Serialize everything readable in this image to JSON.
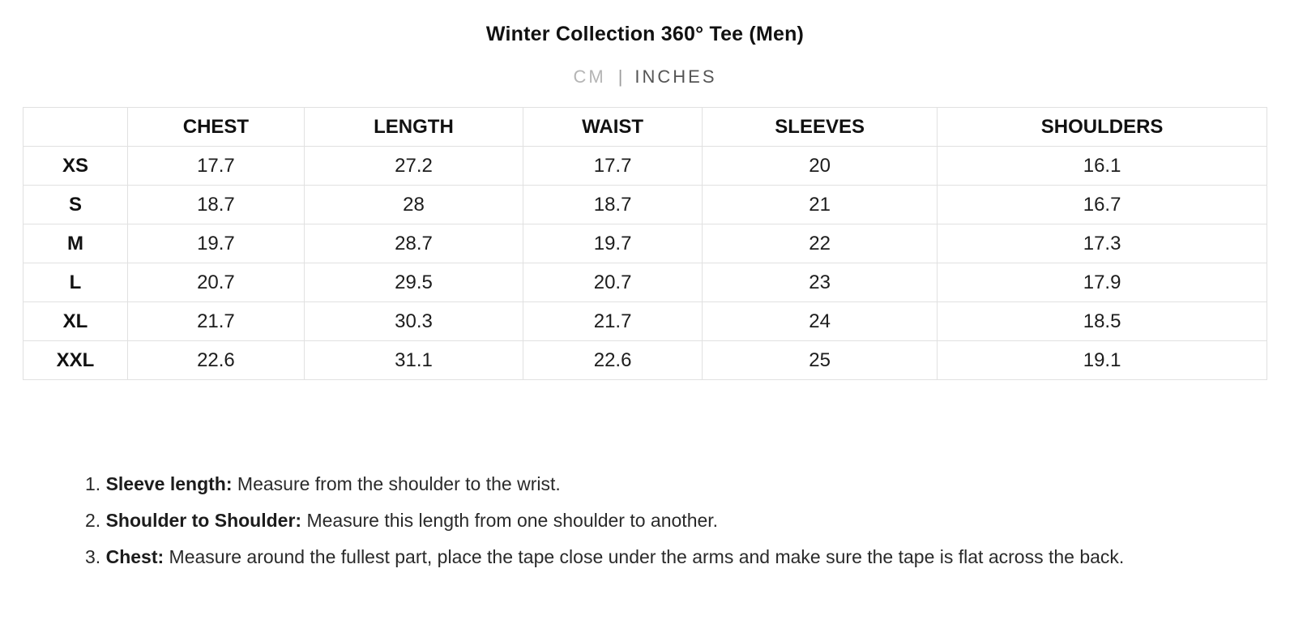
{
  "header": {
    "title": "Winter Collection 360° Tee (Men)"
  },
  "unit_toggle": {
    "cm_label": "CM",
    "separator": "|",
    "inches_label": "INCHES",
    "selected": "INCHES"
  },
  "size_table": {
    "columns": [
      "",
      "CHEST",
      "LENGTH",
      "WAIST",
      "SLEEVES",
      "SHOULDERS"
    ],
    "rows": [
      {
        "size": "XS",
        "values": [
          "17.7",
          "27.2",
          "17.7",
          "20",
          "16.1"
        ]
      },
      {
        "size": "S",
        "values": [
          "18.7",
          "28",
          "18.7",
          "21",
          "16.7"
        ]
      },
      {
        "size": "M",
        "values": [
          "19.7",
          "28.7",
          "19.7",
          "22",
          "17.3"
        ]
      },
      {
        "size": "L",
        "values": [
          "20.7",
          "29.5",
          "20.7",
          "23",
          "17.9"
        ]
      },
      {
        "size": "XL",
        "values": [
          "21.7",
          "30.3",
          "21.7",
          "24",
          "18.5"
        ]
      },
      {
        "size": "XXL",
        "values": [
          "22.6",
          "31.1",
          "22.6",
          "25",
          "19.1"
        ]
      }
    ]
  },
  "instructions": [
    {
      "number": "1.",
      "label": "Sleeve length:",
      "text": "Measure from the shoulder to the wrist."
    },
    {
      "number": "2.",
      "label": "Shoulder to Shoulder:",
      "text": "Measure this length from one shoulder to another."
    },
    {
      "number": "3.",
      "label": "Chest:",
      "text": "Measure around the fullest part, place the tape close under the arms and make sure the tape is flat across the back."
    }
  ],
  "colors": {
    "title_text": "#111111",
    "active_unit": "#555555",
    "inactive_unit": "#b5b5b5",
    "table_border": "#e1e1e1",
    "body_text": "#2a2a2a",
    "background": "#ffffff"
  }
}
